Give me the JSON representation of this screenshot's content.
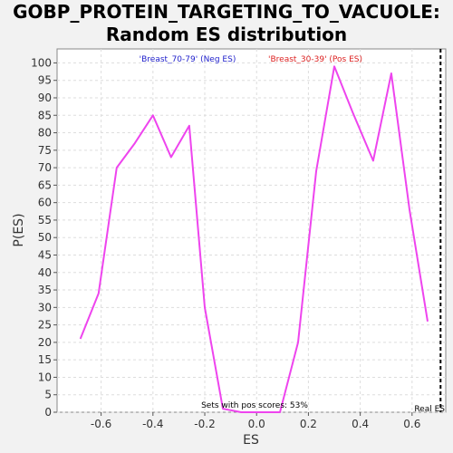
{
  "chart_data": {
    "type": "line",
    "title_line1": "GOBP_PROTEIN_TARGETING_TO_VACUOLE:",
    "title_line2": "Random ES distribution",
    "xlabel": "ES",
    "ylabel": "P(ES)",
    "xlim": [
      -0.77,
      0.73
    ],
    "ylim": [
      0,
      104
    ],
    "xticks": [
      -0.6,
      -0.4,
      -0.2,
      0.0,
      0.2,
      0.4,
      0.6
    ],
    "xtick_labels": [
      "-0.6",
      "-0.4",
      "-0.2",
      "0.0",
      "0.2",
      "0.4",
      "0.6"
    ],
    "yticks": [
      0,
      5,
      10,
      15,
      20,
      25,
      30,
      35,
      40,
      45,
      50,
      55,
      60,
      65,
      70,
      75,
      80,
      85,
      90,
      95,
      100
    ],
    "ytick_labels": [
      "0",
      "5",
      "10",
      "15",
      "20",
      "25",
      "30",
      "35",
      "40",
      "45",
      "50",
      "55",
      "60",
      "65",
      "70",
      "75",
      "80",
      "85",
      "90",
      "95",
      "100"
    ],
    "grid": true,
    "series": [
      {
        "color": "#ee44ee",
        "x": [
          -0.68,
          -0.61,
          -0.54,
          -0.47,
          -0.4,
          -0.33,
          -0.26,
          -0.2,
          -0.13,
          -0.06,
          0.02,
          0.09,
          0.16,
          0.23,
          0.3,
          0.37,
          0.45,
          0.52,
          0.59,
          0.66
        ],
        "y": [
          21,
          34,
          70,
          77,
          85,
          73,
          82,
          30,
          1,
          0,
          0,
          0,
          20,
          69,
          99,
          86,
          72,
          97,
          58,
          26
        ]
      }
    ],
    "legend": [
      {
        "label": "'Breast_70-79' (Neg ES)",
        "color": "#2222cc"
      },
      {
        "label": "'Breast_30-39' (Pos ES)",
        "color": "#dd2222"
      }
    ],
    "real_es_line": {
      "x": 0.71,
      "label": "Real ES"
    },
    "annotation": "Sets with pos scores: 53%"
  }
}
